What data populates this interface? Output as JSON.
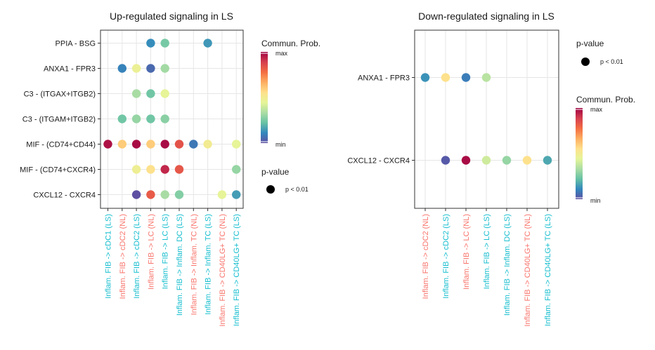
{
  "colors": {
    "scale": [
      "#5E4FA2",
      "#3288BD",
      "#66C2A5",
      "#ABDDA4",
      "#E6F598",
      "#FEE08B",
      "#FDAE61",
      "#F46D43",
      "#D53E4F",
      "#9E0142"
    ],
    "label_ls": "#17BECF",
    "label_nl": "#F8766D",
    "grid": "#E6E6E6",
    "axis_text": "#1A1A1A"
  },
  "chart_data": [
    {
      "type": "scatter",
      "title": "Up-regulated signaling in LS",
      "y_categories": [
        "PPIA - BSG",
        "ANXA1 - FPR3",
        "C3 - (ITGAX+ITGB2)",
        "C3 - (ITGAM+ITGB2)",
        "MIF - (CD74+CD44)",
        "MIF - (CD74+CXCR4)",
        "CXCL12 - CXCR4"
      ],
      "x_categories": [
        {
          "label": "Inflam. FIB -> cDC1 (LS)",
          "group": "LS"
        },
        {
          "label": "Inflam. FIB -> cDC2 (NL)",
          "group": "NL"
        },
        {
          "label": "Inflam. FIB -> cDC2 (LS)",
          "group": "LS"
        },
        {
          "label": "Inflam. FIB -> LC (NL)",
          "group": "NL"
        },
        {
          "label": "Inflam. FIB -> LC (LS)",
          "group": "LS"
        },
        {
          "label": "Inflam. FIB -> Inflam. DC (LS)",
          "group": "LS"
        },
        {
          "label": "Inflam. FIB -> Inflam. TC (NL)",
          "group": "NL"
        },
        {
          "label": "Inflam. FIB -> Inflam. TC (LS)",
          "group": "LS"
        },
        {
          "label": "Inflam. FIB -> CD40LG+ TC (NL)",
          "group": "NL"
        },
        {
          "label": "Inflam. FIB -> CD40LG+ TC (LS)",
          "group": "LS"
        }
      ],
      "points": [
        {
          "x": 3,
          "y": 0,
          "prob": 0.12
        },
        {
          "x": 4,
          "y": 0,
          "prob": 0.25
        },
        {
          "x": 7,
          "y": 0,
          "prob": 0.14
        },
        {
          "x": 1,
          "y": 1,
          "prob": 0.1
        },
        {
          "x": 2,
          "y": 1,
          "prob": 0.47
        },
        {
          "x": 3,
          "y": 1,
          "prob": 0.05
        },
        {
          "x": 4,
          "y": 1,
          "prob": 0.32
        },
        {
          "x": 2,
          "y": 2,
          "prob": 0.33
        },
        {
          "x": 3,
          "y": 2,
          "prob": 0.24
        },
        {
          "x": 4,
          "y": 2,
          "prob": 0.45
        },
        {
          "x": 1,
          "y": 3,
          "prob": 0.24
        },
        {
          "x": 2,
          "y": 3,
          "prob": 0.3
        },
        {
          "x": 3,
          "y": 3,
          "prob": 0.24
        },
        {
          "x": 4,
          "y": 3,
          "prob": 0.28
        },
        {
          "x": 0,
          "y": 4,
          "prob": 0.97
        },
        {
          "x": 1,
          "y": 4,
          "prob": 0.6
        },
        {
          "x": 2,
          "y": 4,
          "prob": 0.98
        },
        {
          "x": 3,
          "y": 4,
          "prob": 0.6
        },
        {
          "x": 4,
          "y": 4,
          "prob": 0.98
        },
        {
          "x": 5,
          "y": 4,
          "prob": 0.84
        },
        {
          "x": 6,
          "y": 4,
          "prob": 0.08
        },
        {
          "x": 7,
          "y": 4,
          "prob": 0.5
        },
        {
          "x": 9,
          "y": 4,
          "prob": 0.45
        },
        {
          "x": 2,
          "y": 5,
          "prob": 0.48
        },
        {
          "x": 3,
          "y": 5,
          "prob": 0.55
        },
        {
          "x": 4,
          "y": 5,
          "prob": 0.93
        },
        {
          "x": 5,
          "y": 5,
          "prob": 0.83
        },
        {
          "x": 9,
          "y": 5,
          "prob": 0.3
        },
        {
          "x": 2,
          "y": 6,
          "prob": 0.0
        },
        {
          "x": 3,
          "y": 6,
          "prob": 0.82
        },
        {
          "x": 4,
          "y": 6,
          "prob": 0.33
        },
        {
          "x": 5,
          "y": 6,
          "prob": 0.27
        },
        {
          "x": 8,
          "y": 6,
          "prob": 0.45
        },
        {
          "x": 9,
          "y": 6,
          "prob": 0.15
        }
      ],
      "legend": {
        "color_title": "Commun. Prob.",
        "color_max": "max",
        "color_min": "min",
        "size_title": "p-value",
        "size_label": "p < 0.01"
      }
    },
    {
      "type": "scatter",
      "title": "Down-regulated signaling in LS",
      "y_categories": [
        "ANXA1 - FPR3",
        "CXCL12 - CXCR4"
      ],
      "x_categories": [
        {
          "label": "Inflam. FIB -> cDC2 (NL)",
          "group": "NL"
        },
        {
          "label": "Inflam. FIB -> cDC2 (LS)",
          "group": "LS"
        },
        {
          "label": "Inflam. FIB -> LC (NL)",
          "group": "NL"
        },
        {
          "label": "Inflam. FIB -> LC (LS)",
          "group": "LS"
        },
        {
          "label": "Inflam. FIB -> Inflam. DC (LS)",
          "group": "LS"
        },
        {
          "label": "Inflam. FIB -> CD40LG+ TC (NL)",
          "group": "NL"
        },
        {
          "label": "Inflam. FIB -> CD40LG+ TC (LS)",
          "group": "LS"
        }
      ],
      "points": [
        {
          "x": 0,
          "y": 0,
          "prob": 0.13
        },
        {
          "x": 1,
          "y": 0,
          "prob": 0.55
        },
        {
          "x": 2,
          "y": 0,
          "prob": 0.09
        },
        {
          "x": 3,
          "y": 0,
          "prob": 0.36
        },
        {
          "x": 1,
          "y": 1,
          "prob": 0.02
        },
        {
          "x": 2,
          "y": 1,
          "prob": 0.98
        },
        {
          "x": 3,
          "y": 1,
          "prob": 0.4
        },
        {
          "x": 4,
          "y": 1,
          "prob": 0.3
        },
        {
          "x": 5,
          "y": 1,
          "prob": 0.55
        },
        {
          "x": 6,
          "y": 1,
          "prob": 0.17
        }
      ],
      "legend": {
        "size_title": "p-value",
        "size_label": "p < 0.01",
        "color_title": "Commun. Prob.",
        "color_max": "max",
        "color_min": "min"
      }
    }
  ]
}
